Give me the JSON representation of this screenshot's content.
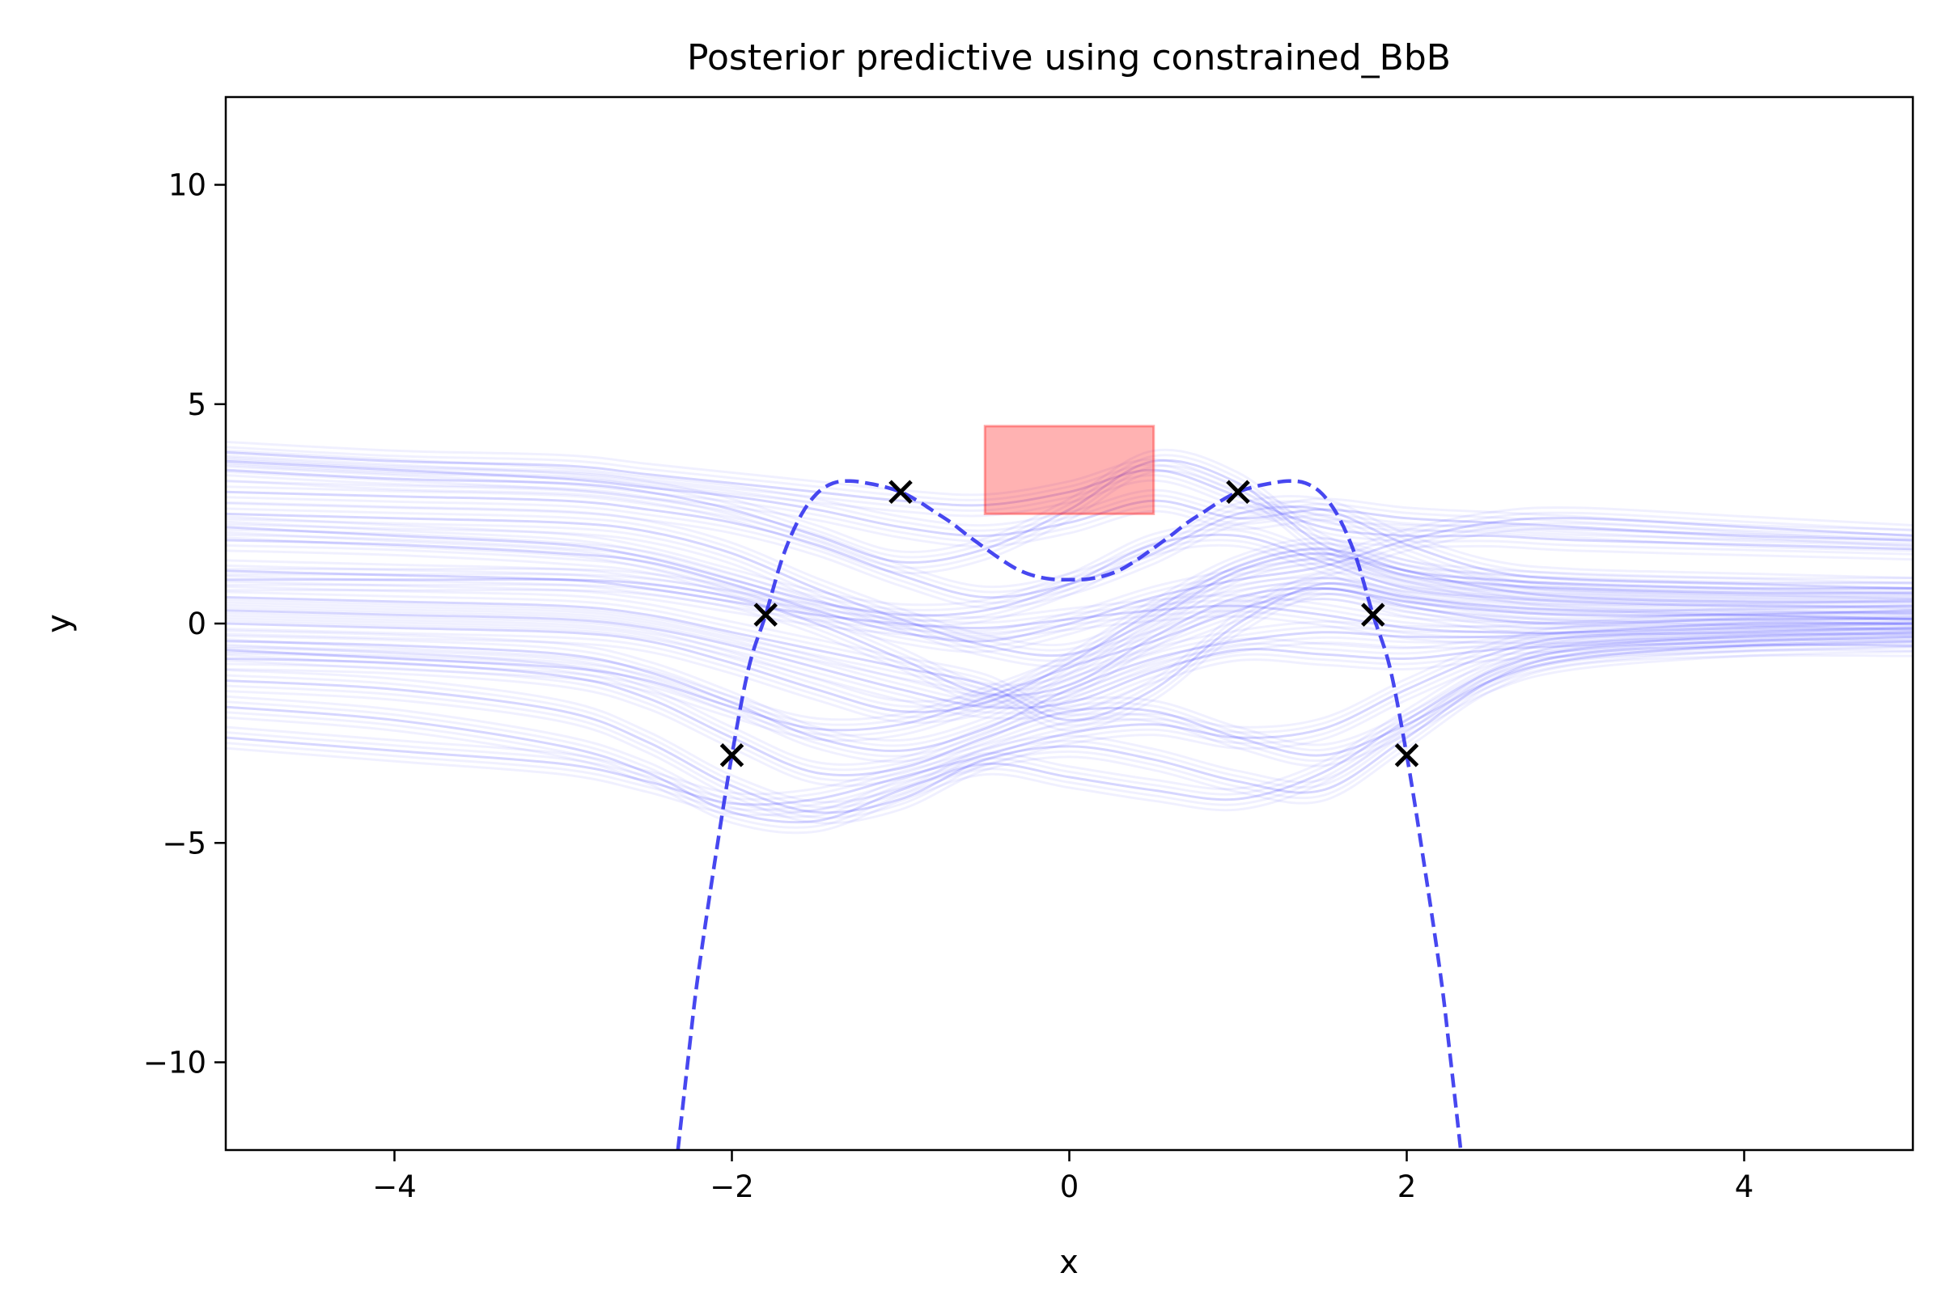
{
  "chart_data": {
    "type": "line",
    "title": "Posterior predictive using constrained_BbB",
    "xlabel": "x",
    "ylabel": "y",
    "xlim": [
      -5,
      5
    ],
    "ylim": [
      -12,
      12
    ],
    "xticks": [
      {
        "value": -4,
        "label": "−4"
      },
      {
        "value": -2,
        "label": "−2"
      },
      {
        "value": 0,
        "label": "0"
      },
      {
        "value": 2,
        "label": "2"
      },
      {
        "value": 4,
        "label": "4"
      }
    ],
    "yticks": [
      {
        "value": -10,
        "label": "−10"
      },
      {
        "value": -5,
        "label": "−5"
      },
      {
        "value": 0,
        "label": "0"
      },
      {
        "value": 5,
        "label": "5"
      },
      {
        "value": 10,
        "label": "10"
      }
    ],
    "training_points": {
      "marker": "x",
      "color": "#000000",
      "x": [
        -2.0,
        -1.8,
        -1.0,
        1.0,
        1.8,
        2.0
      ],
      "y": [
        -3.0,
        0.2,
        3.0,
        3.0,
        0.2,
        -3.0
      ]
    },
    "true_function": {
      "name": "true function",
      "style": "dashed",
      "color": "#3333ee",
      "x": [
        -2.32,
        -2.25,
        -2.2,
        -2.1,
        -2.0,
        -1.9,
        -1.8,
        -1.7,
        -1.6,
        -1.5,
        -1.4,
        -1.3,
        -1.2,
        -1.1,
        -1.0,
        -0.9,
        -0.8,
        -0.7,
        -0.6,
        -0.5,
        -0.4,
        -0.3,
        -0.2,
        -0.1,
        0.0,
        0.1,
        0.2,
        0.3,
        0.4,
        0.5,
        0.6,
        0.7,
        0.8,
        0.9,
        1.0,
        1.1,
        1.2,
        1.3,
        1.4,
        1.5,
        1.6,
        1.7,
        1.8,
        1.9,
        2.0,
        2.1,
        2.2,
        2.25,
        2.32
      ],
      "y": [
        -12.0,
        -9.6,
        -8.0,
        -5.4,
        -3.0,
        -1.0,
        0.2,
        1.5,
        2.4,
        2.95,
        3.2,
        3.25,
        3.2,
        3.12,
        3.0,
        2.8,
        2.55,
        2.3,
        2.0,
        1.72,
        1.45,
        1.22,
        1.08,
        1.01,
        1.0,
        1.01,
        1.08,
        1.22,
        1.45,
        1.72,
        2.0,
        2.3,
        2.55,
        2.8,
        3.0,
        3.12,
        3.2,
        3.25,
        3.2,
        2.95,
        2.4,
        1.5,
        0.2,
        -1.0,
        -3.0,
        -5.4,
        -8.0,
        -9.6,
        -12.0
      ]
    },
    "constraint_region": {
      "name": "constraint box",
      "color": "#ff0000",
      "x": [
        -0.5,
        0.5
      ],
      "y": [
        2.5,
        4.5
      ]
    },
    "posterior_samples": {
      "name": "posterior predictive samples",
      "color": "#0000ff",
      "x": [
        -5,
        -4,
        -3,
        -2.5,
        -2,
        -1.5,
        -1,
        -0.5,
        0,
        0.5,
        1,
        1.5,
        2,
        2.5,
        3,
        4,
        5
      ],
      "series": [
        [
          3.9,
          3.7,
          3.6,
          3.4,
          3.2,
          3.0,
          2.8,
          2.7,
          3.0,
          3.5,
          2.9,
          2.2,
          2.0,
          2.0,
          1.9,
          1.8,
          1.7
        ],
        [
          3.5,
          3.3,
          3.2,
          3.0,
          2.6,
          2.0,
          1.4,
          1.7,
          2.6,
          3.7,
          3.2,
          1.8,
          1.2,
          1.0,
          0.9,
          0.8,
          0.8
        ],
        [
          3.0,
          2.9,
          2.8,
          2.6,
          2.3,
          1.8,
          1.1,
          0.6,
          0.9,
          1.6,
          2.5,
          2.6,
          1.8,
          1.2,
          1.0,
          0.9,
          0.8
        ],
        [
          2.5,
          2.4,
          2.3,
          2.1,
          1.6,
          0.8,
          0.1,
          -0.5,
          -0.7,
          0.1,
          1.2,
          1.6,
          1.1,
          0.9,
          0.8,
          0.7,
          0.7
        ],
        [
          1.9,
          1.8,
          1.6,
          1.4,
          0.9,
          0.3,
          -0.2,
          -0.4,
          0.0,
          0.6,
          1.0,
          1.3,
          1.9,
          2.3,
          2.4,
          2.2,
          2.0
        ],
        [
          1.2,
          1.1,
          1.0,
          0.8,
          0.5,
          0.2,
          0.0,
          -0.1,
          0.1,
          0.3,
          0.4,
          0.2,
          -0.1,
          -0.2,
          -0.2,
          -0.1,
          0.0
        ],
        [
          1.0,
          1.0,
          1.0,
          0.9,
          0.6,
          0.0,
          -0.8,
          -1.6,
          -1.4,
          -0.3,
          0.6,
          0.8,
          0.5,
          0.3,
          0.2,
          0.2,
          0.3
        ],
        [
          0.6,
          0.5,
          0.4,
          0.2,
          -0.2,
          -0.6,
          -1.0,
          -1.4,
          -2.2,
          -1.5,
          0.0,
          0.9,
          0.6,
          0.4,
          0.3,
          0.2,
          0.1
        ],
        [
          0.0,
          -0.1,
          -0.2,
          -0.4,
          -0.9,
          -1.5,
          -2.0,
          -1.8,
          -0.9,
          0.3,
          1.3,
          1.7,
          1.2,
          0.8,
          0.6,
          0.5,
          0.5
        ],
        [
          -0.4,
          -0.5,
          -0.7,
          -1.1,
          -1.8,
          -2.6,
          -2.9,
          -2.4,
          -1.5,
          -0.8,
          -0.4,
          -0.2,
          -0.3,
          -0.3,
          -0.2,
          0.0,
          0.0
        ],
        [
          -0.8,
          -0.9,
          -1.2,
          -1.7,
          -2.6,
          -3.4,
          -3.3,
          -2.6,
          -2.0,
          -2.0,
          -2.6,
          -3.0,
          -2.3,
          -1.3,
          -0.8,
          -0.5,
          -0.4
        ],
        [
          -1.3,
          -1.5,
          -2.0,
          -2.7,
          -3.7,
          -4.3,
          -4.0,
          -3.1,
          -2.8,
          -3.1,
          -3.6,
          -3.8,
          -2.6,
          -1.3,
          -0.7,
          -0.5,
          -0.5
        ],
        [
          -1.9,
          -2.2,
          -2.8,
          -3.4,
          -4.3,
          -4.5,
          -3.8,
          -3.2,
          -3.5,
          -3.8,
          -4.0,
          -3.4,
          -2.2,
          -1.1,
          -0.6,
          -0.4,
          -0.3
        ],
        [
          3.7,
          3.5,
          3.3,
          3.1,
          2.9,
          2.6,
          2.2,
          2.0,
          2.3,
          2.8,
          2.4,
          2.6,
          2.4,
          2.3,
          2.2,
          2.0,
          1.9
        ],
        [
          2.2,
          2.0,
          1.8,
          1.5,
          1.0,
          0.5,
          0.2,
          0.3,
          0.9,
          1.8,
          2.0,
          1.4,
          0.8,
          0.6,
          0.5,
          0.4,
          0.4
        ],
        [
          0.3,
          0.2,
          0.1,
          -0.1,
          -0.5,
          -1.0,
          -1.5,
          -1.9,
          -1.8,
          -1.1,
          -0.6,
          -0.7,
          -0.8,
          -0.6,
          -0.5,
          -0.3,
          -0.2
        ],
        [
          -0.6,
          -0.8,
          -1.0,
          -1.3,
          -1.9,
          -2.4,
          -2.3,
          -1.7,
          -1.0,
          -0.4,
          0.3,
          0.8,
          0.4,
          0.1,
          0.0,
          0.1,
          0.1
        ],
        [
          -2.6,
          -2.9,
          -3.2,
          -3.6,
          -4.1,
          -4.0,
          -3.5,
          -3.0,
          -2.5,
          -2.3,
          -2.6,
          -2.4,
          -1.5,
          -0.7,
          -0.3,
          -0.2,
          -0.1
        ]
      ]
    }
  }
}
